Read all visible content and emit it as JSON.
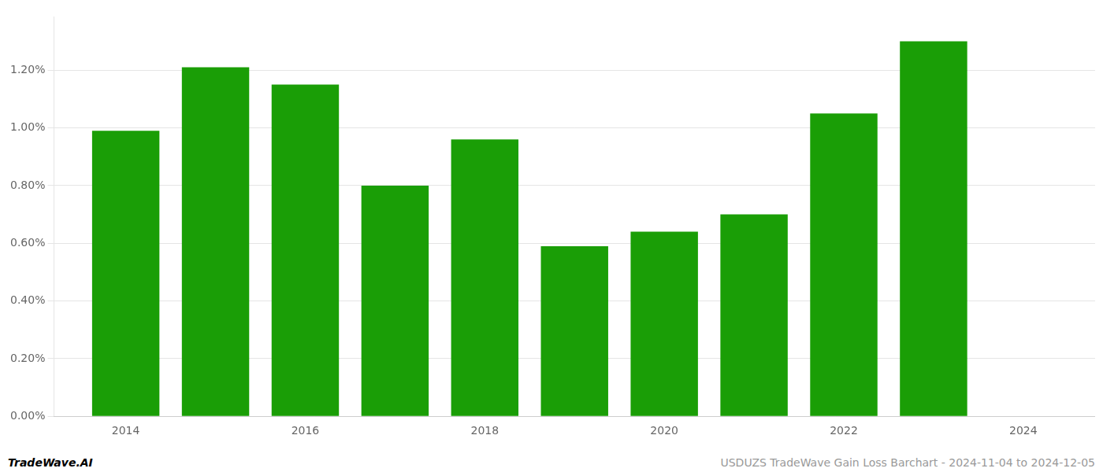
{
  "chart_data": {
    "type": "bar",
    "x": [
      2014,
      2015,
      2016,
      2017,
      2018,
      2019,
      2020,
      2021,
      2022,
      2023
    ],
    "values": [
      0.0099,
      0.0121,
      0.0115,
      0.008,
      0.0096,
      0.0059,
      0.0064,
      0.007,
      0.0105,
      0.013
    ],
    "color": "#1a9e06",
    "xlim": [
      2013.2,
      2024.8
    ],
    "xticks": [
      2014,
      2016,
      2018,
      2020,
      2022,
      2024
    ],
    "ylim": [
      0.0,
      0.01385
    ],
    "yticks": [
      {
        "value": 0.0,
        "label": "0.00%"
      },
      {
        "value": 0.002,
        "label": "0.20%"
      },
      {
        "value": 0.004,
        "label": "0.40%"
      },
      {
        "value": 0.006,
        "label": "0.60%"
      },
      {
        "value": 0.008,
        "label": "0.80%"
      },
      {
        "value": 0.01,
        "label": "1.00%"
      },
      {
        "value": 0.012,
        "label": "1.20%"
      }
    ],
    "grid": true,
    "annotations": [
      "TradeWave.AI",
      "USDUZS TradeWave Gain Loss Barchart - 2024-11-04 to 2024-12-05"
    ]
  }
}
